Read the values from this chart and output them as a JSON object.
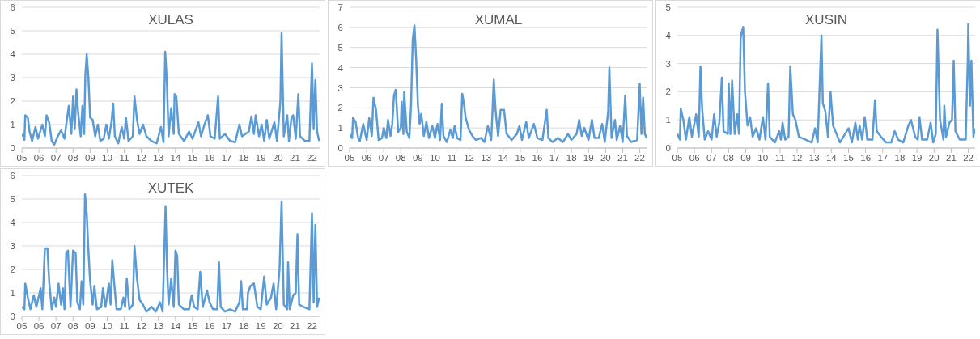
{
  "chart_data": [
    {
      "type": "line",
      "title": "XULAS",
      "grid": "y",
      "xlim": [
        2005,
        2022.45
      ],
      "ylim": [
        0,
        6
      ],
      "yticks": [
        0,
        1,
        2,
        3,
        4,
        5,
        6
      ],
      "xticks": [
        {
          "value": 2005,
          "label": "05"
        },
        {
          "value": 2006,
          "label": "06"
        },
        {
          "value": 2007,
          "label": "07"
        },
        {
          "value": 2008,
          "label": "08"
        },
        {
          "value": 2009,
          "label": "09"
        },
        {
          "value": 2010,
          "label": "10"
        },
        {
          "value": 2011,
          "label": "11"
        },
        {
          "value": 2012,
          "label": "12"
        },
        {
          "value": 2013,
          "label": "13"
        },
        {
          "value": 2014,
          "label": "14"
        },
        {
          "value": 2015,
          "label": "15"
        },
        {
          "value": 2016,
          "label": "16"
        },
        {
          "value": 2017,
          "label": "17"
        },
        {
          "value": 2018,
          "label": "18"
        },
        {
          "value": 2019,
          "label": "19"
        },
        {
          "value": 2020,
          "label": "20"
        },
        {
          "value": 2021,
          "label": "21"
        },
        {
          "value": 2022,
          "label": "22"
        }
      ],
      "series": [
        {
          "color": "#5b9bd5",
          "x": [
            2005.0,
            2005.1,
            2005.15,
            2005.2,
            2005.35,
            2005.45,
            2005.6,
            2005.8,
            2005.95,
            2006.2,
            2006.35,
            2006.45,
            2006.6,
            2006.75,
            2006.9,
            2007.1,
            2007.3,
            2007.5,
            2007.6,
            2007.75,
            2007.9,
            2008.0,
            2008.1,
            2008.2,
            2008.3,
            2008.45,
            2008.55,
            2008.65,
            2008.72,
            2008.8,
            2008.9,
            2009.0,
            2009.15,
            2009.3,
            2009.45,
            2009.6,
            2009.8,
            2009.95,
            2010.1,
            2010.25,
            2010.35,
            2010.45,
            2010.65,
            2010.85,
            2011.0,
            2011.1,
            2011.25,
            2011.5,
            2011.6,
            2011.75,
            2011.9,
            2012.1,
            2012.3,
            2012.6,
            2012.9,
            2013.15,
            2013.3,
            2013.4,
            2013.5,
            2013.6,
            2013.75,
            2013.9,
            2013.95,
            2014.05,
            2014.2,
            2014.5,
            2014.8,
            2015.0,
            2015.35,
            2015.5,
            2015.7,
            2015.9,
            2016.05,
            2016.3,
            2016.5,
            2016.6,
            2016.9,
            2017.2,
            2017.5,
            2017.75,
            2017.9,
            2018.3,
            2018.45,
            2018.6,
            2018.7,
            2018.9,
            2019.05,
            2019.2,
            2019.35,
            2019.5,
            2019.8,
            2019.95,
            2020.15,
            2020.22,
            2020.35,
            2020.55,
            2020.65,
            2020.8,
            2020.9,
            2021.05,
            2021.2,
            2021.3,
            2021.6,
            2021.85,
            2022.0,
            2022.1,
            2022.2,
            2022.3,
            2022.42
          ],
          "values": [
            0.5,
            0.6,
            0.35,
            1.4,
            1.3,
            0.7,
            0.3,
            0.9,
            0.4,
            1.0,
            0.5,
            1.4,
            1.1,
            0.3,
            0.15,
            0.5,
            0.75,
            0.4,
            1.0,
            1.8,
            0.6,
            2.2,
            0.8,
            2.5,
            1.5,
            0.5,
            1.8,
            0.6,
            3.1,
            4.0,
            3.0,
            1.3,
            1.2,
            0.5,
            1.0,
            0.3,
            0.4,
            1.0,
            0.4,
            1.1,
            1.9,
            0.5,
            0.2,
            0.9,
            0.4,
            1.3,
            0.3,
            0.5,
            2.2,
            1.2,
            0.6,
            1.0,
            0.5,
            0.3,
            0.2,
            0.9,
            0.25,
            4.1,
            2.8,
            0.5,
            1.7,
            0.6,
            2.3,
            2.2,
            0.6,
            0.3,
            0.7,
            0.4,
            1.1,
            0.5,
            1.0,
            1.4,
            0.5,
            0.4,
            2.2,
            0.4,
            0.6,
            0.3,
            0.25,
            1.0,
            0.5,
            0.7,
            1.35,
            0.6,
            1.4,
            0.5,
            1.0,
            0.3,
            1.2,
            0.4,
            1.1,
            0.3,
            2.0,
            4.9,
            0.5,
            1.4,
            0.3,
            1.3,
            1.4,
            0.4,
            2.3,
            0.5,
            0.3,
            0.3,
            3.6,
            0.8,
            2.9,
            0.7,
            0.3
          ]
        }
      ]
    },
    {
      "type": "line",
      "title": "XUMAL",
      "grid": "y",
      "xlim": [
        2005,
        2022.45
      ],
      "ylim": [
        0,
        7
      ],
      "yticks": [
        0,
        1,
        2,
        3,
        4,
        5,
        6,
        7
      ],
      "xticks": [
        {
          "value": 2005,
          "label": "05"
        },
        {
          "value": 2006,
          "label": "06"
        },
        {
          "value": 2007,
          "label": "07"
        },
        {
          "value": 2008,
          "label": "08"
        },
        {
          "value": 2009,
          "label": "09"
        },
        {
          "value": 2010,
          "label": "10"
        },
        {
          "value": 2011,
          "label": "11"
        },
        {
          "value": 2012,
          "label": "12"
        },
        {
          "value": 2013,
          "label": "13"
        },
        {
          "value": 2014,
          "label": "14"
        },
        {
          "value": 2015,
          "label": "15"
        },
        {
          "value": 2016,
          "label": "16"
        },
        {
          "value": 2017,
          "label": "17"
        },
        {
          "value": 2018,
          "label": "18"
        },
        {
          "value": 2019,
          "label": "19"
        },
        {
          "value": 2020,
          "label": "20"
        },
        {
          "value": 2021,
          "label": "21"
        },
        {
          "value": 2022,
          "label": "22"
        }
      ],
      "series": [
        {
          "color": "#5b9bd5",
          "x": [
            2005.0,
            2005.15,
            2005.2,
            2005.35,
            2005.5,
            2005.6,
            2005.8,
            2006.0,
            2006.15,
            2006.3,
            2006.4,
            2006.55,
            2006.7,
            2006.9,
            2007.0,
            2007.15,
            2007.25,
            2007.4,
            2007.5,
            2007.6,
            2007.7,
            2007.85,
            2008.0,
            2008.05,
            2008.15,
            2008.2,
            2008.35,
            2008.5,
            2008.6,
            2008.7,
            2008.8,
            2008.9,
            2009.0,
            2009.1,
            2009.2,
            2009.35,
            2009.5,
            2009.65,
            2009.85,
            2010.0,
            2010.15,
            2010.3,
            2010.4,
            2010.5,
            2010.7,
            2010.9,
            2011.05,
            2011.15,
            2011.3,
            2011.5,
            2011.6,
            2011.7,
            2011.8,
            2012.0,
            2012.2,
            2012.4,
            2012.7,
            2012.9,
            2013.1,
            2013.3,
            2013.45,
            2013.55,
            2013.7,
            2013.85,
            2014.05,
            2014.2,
            2014.5,
            2014.8,
            2014.95,
            2015.1,
            2015.35,
            2015.5,
            2015.8,
            2016.0,
            2016.3,
            2016.55,
            2016.65,
            2016.9,
            2017.2,
            2017.5,
            2017.8,
            2018.0,
            2018.3,
            2018.45,
            2018.6,
            2018.75,
            2019.0,
            2019.2,
            2019.35,
            2019.6,
            2019.8,
            2019.95,
            2020.15,
            2020.22,
            2020.35,
            2020.55,
            2020.65,
            2020.85,
            2021.0,
            2021.15,
            2021.25,
            2021.5,
            2021.85,
            2022.0,
            2022.1,
            2022.2,
            2022.3,
            2022.42
          ],
          "values": [
            0.7,
            0.5,
            1.5,
            1.3,
            0.5,
            0.35,
            1.2,
            0.4,
            1.5,
            0.6,
            2.5,
            1.9,
            0.4,
            0.5,
            1.0,
            0.5,
            1.4,
            0.6,
            1.2,
            2.6,
            2.9,
            0.8,
            1.0,
            2.3,
            0.7,
            2.8,
            0.8,
            0.5,
            2.1,
            5.4,
            6.1,
            4.4,
            2.2,
            1.2,
            1.7,
            0.6,
            1.3,
            0.5,
            1.1,
            0.5,
            1.2,
            0.4,
            2.2,
            0.6,
            0.3,
            0.9,
            0.5,
            1.1,
            0.5,
            0.4,
            2.7,
            2.2,
            1.5,
            0.9,
            0.6,
            0.4,
            0.5,
            0.3,
            1.1,
            0.4,
            3.4,
            1.9,
            0.6,
            1.9,
            1.9,
            0.7,
            0.4,
            0.7,
            1.1,
            0.4,
            1.3,
            0.5,
            1.2,
            0.5,
            0.4,
            1.9,
            0.5,
            0.3,
            0.5,
            0.3,
            0.7,
            0.4,
            0.7,
            1.4,
            0.6,
            1.0,
            0.4,
            1.4,
            0.5,
            0.5,
            1.2,
            0.3,
            1.8,
            4.0,
            0.5,
            1.4,
            0.4,
            1.1,
            0.3,
            2.6,
            0.6,
            0.3,
            0.4,
            3.2,
            0.7,
            2.5,
            0.7,
            0.5
          ]
        }
      ]
    },
    {
      "type": "line",
      "title": "XUSIN",
      "grid": "y",
      "xlim": [
        2005,
        2022.4
      ],
      "ylim": [
        0,
        5
      ],
      "yticks": [
        0,
        1,
        2,
        3,
        4,
        5
      ],
      "xticks": [
        {
          "value": 2005,
          "label": "05"
        },
        {
          "value": 2006,
          "label": "06"
        },
        {
          "value": 2007,
          "label": "07"
        },
        {
          "value": 2008,
          "label": "08"
        },
        {
          "value": 2009,
          "label": "09"
        },
        {
          "value": 2010,
          "label": "10"
        },
        {
          "value": 2011,
          "label": "11"
        },
        {
          "value": 2012,
          "label": "12"
        },
        {
          "value": 2013,
          "label": "13"
        },
        {
          "value": 2014,
          "label": "14"
        },
        {
          "value": 2015,
          "label": "15"
        },
        {
          "value": 2016,
          "label": "16"
        },
        {
          "value": 2017,
          "label": "17"
        },
        {
          "value": 2018,
          "label": "18"
        },
        {
          "value": 2019,
          "label": "19"
        },
        {
          "value": 2020,
          "label": "20"
        },
        {
          "value": 2021,
          "label": "21"
        },
        {
          "value": 2022,
          "label": "22"
        }
      ],
      "series": [
        {
          "color": "#5b9bd5",
          "x": [
            2005.0,
            2005.15,
            2005.2,
            2005.35,
            2005.5,
            2005.7,
            2005.85,
            2006.1,
            2006.25,
            2006.35,
            2006.45,
            2006.6,
            2006.8,
            2007.0,
            2007.15,
            2007.3,
            2007.45,
            2007.6,
            2007.7,
            2007.95,
            2008.0,
            2008.1,
            2008.2,
            2008.35,
            2008.5,
            2008.6,
            2008.7,
            2008.75,
            2008.85,
            2008.95,
            2009.1,
            2009.25,
            2009.4,
            2009.6,
            2009.8,
            2010.0,
            2010.15,
            2010.3,
            2010.4,
            2010.7,
            2010.95,
            2011.05,
            2011.15,
            2011.3,
            2011.5,
            2011.6,
            2011.75,
            2011.9,
            2012.1,
            2012.5,
            2012.85,
            2013.05,
            2013.2,
            2013.42,
            2013.5,
            2013.65,
            2013.8,
            2013.95,
            2014.1,
            2014.3,
            2014.5,
            2014.8,
            2015.0,
            2015.2,
            2015.4,
            2015.55,
            2015.65,
            2015.8,
            2015.95,
            2016.1,
            2016.4,
            2016.55,
            2016.65,
            2016.9,
            2017.2,
            2017.5,
            2017.7,
            2017.9,
            2018.2,
            2018.5,
            2018.65,
            2018.9,
            2019.05,
            2019.15,
            2019.3,
            2019.6,
            2019.8,
            2019.95,
            2020.1,
            2020.2,
            2020.35,
            2020.55,
            2020.6,
            2020.7,
            2020.9,
            2021.05,
            2021.15,
            2021.25,
            2021.5,
            2021.85,
            2021.97,
            2022.0,
            2022.1,
            2022.18,
            2022.3,
            2022.38
          ],
          "values": [
            0.5,
            0.3,
            1.4,
            1.0,
            0.3,
            1.1,
            0.4,
            1.2,
            0.4,
            2.9,
            1.4,
            0.3,
            0.6,
            0.3,
            1.2,
            0.4,
            0.9,
            2.5,
            0.6,
            0.5,
            2.3,
            0.5,
            2.4,
            0.5,
            1.2,
            0.5,
            3.9,
            4.1,
            4.3,
            2.0,
            0.8,
            1.1,
            0.4,
            0.7,
            0.3,
            1.1,
            0.3,
            2.3,
            0.4,
            0.2,
            0.6,
            0.3,
            0.9,
            0.3,
            0.4,
            2.9,
            1.2,
            1.0,
            0.4,
            0.3,
            0.2,
            0.7,
            0.2,
            4.0,
            1.6,
            1.3,
            0.4,
            2.0,
            0.8,
            0.5,
            0.2,
            0.5,
            0.7,
            0.2,
            0.9,
            0.3,
            0.8,
            0.3,
            1.1,
            0.3,
            0.3,
            1.7,
            0.6,
            0.4,
            0.2,
            0.2,
            0.6,
            0.3,
            0.2,
            0.8,
            1.0,
            0.4,
            0.3,
            1.1,
            0.3,
            0.3,
            0.9,
            0.2,
            0.5,
            4.2,
            1.0,
            0.3,
            1.5,
            0.4,
            0.9,
            1.0,
            3.1,
            0.6,
            0.3,
            0.3,
            3.1,
            4.4,
            1.5,
            3.1,
            0.4,
            0.7
          ]
        }
      ]
    },
    {
      "type": "line",
      "title": "XUTEK",
      "grid": "y",
      "xlim": [
        2005,
        2022.45
      ],
      "ylim": [
        0,
        6
      ],
      "yticks": [
        0,
        1,
        2,
        3,
        4,
        5,
        6
      ],
      "xticks": [
        {
          "value": 2005,
          "label": "05"
        },
        {
          "value": 2006,
          "label": "06"
        },
        {
          "value": 2007,
          "label": "07"
        },
        {
          "value": 2008,
          "label": "08"
        },
        {
          "value": 2009,
          "label": "09"
        },
        {
          "value": 2010,
          "label": "10"
        },
        {
          "value": 2011,
          "label": "11"
        },
        {
          "value": 2012,
          "label": "12"
        },
        {
          "value": 2013,
          "label": "13"
        },
        {
          "value": 2014,
          "label": "14"
        },
        {
          "value": 2015,
          "label": "15"
        },
        {
          "value": 2016,
          "label": "16"
        },
        {
          "value": 2017,
          "label": "17"
        },
        {
          "value": 2018,
          "label": "18"
        },
        {
          "value": 2019,
          "label": "19"
        },
        {
          "value": 2020,
          "label": "20"
        },
        {
          "value": 2021,
          "label": "21"
        },
        {
          "value": 2022,
          "label": "22"
        }
      ],
      "series": [
        {
          "color": "#5b9bd5",
          "x": [
            2005.0,
            2005.15,
            2005.2,
            2005.35,
            2005.5,
            2005.7,
            2005.85,
            2006.1,
            2006.2,
            2006.35,
            2006.5,
            2006.6,
            2006.75,
            2006.9,
            2007.0,
            2007.15,
            2007.3,
            2007.4,
            2007.5,
            2007.6,
            2007.7,
            2007.85,
            2008.0,
            2008.15,
            2008.25,
            2008.4,
            2008.5,
            2008.6,
            2008.7,
            2008.8,
            2008.9,
            2009.0,
            2009.15,
            2009.25,
            2009.4,
            2009.65,
            2009.75,
            2009.9,
            2010.1,
            2010.2,
            2010.3,
            2010.4,
            2010.55,
            2010.8,
            2010.95,
            2011.05,
            2011.15,
            2011.3,
            2011.5,
            2011.6,
            2011.75,
            2011.9,
            2012.1,
            2012.3,
            2012.6,
            2012.85,
            2013.1,
            2013.25,
            2013.42,
            2013.5,
            2013.6,
            2013.75,
            2013.9,
            2014.0,
            2014.1,
            2014.2,
            2014.5,
            2014.8,
            2014.95,
            2015.1,
            2015.3,
            2015.45,
            2015.6,
            2015.85,
            2016.0,
            2016.2,
            2016.45,
            2016.55,
            2016.65,
            2016.9,
            2017.2,
            2017.5,
            2017.75,
            2017.85,
            2017.95,
            2018.2,
            2018.25,
            2018.4,
            2018.6,
            2018.8,
            2019.0,
            2019.2,
            2019.35,
            2019.6,
            2019.75,
            2019.9,
            2020.1,
            2020.22,
            2020.35,
            2020.55,
            2020.6,
            2020.7,
            2020.9,
            2021.05,
            2021.15,
            2021.25,
            2021.5,
            2021.85,
            2022.0,
            2022.1,
            2022.2,
            2022.3,
            2022.42
          ],
          "values": [
            0.4,
            0.3,
            1.4,
            0.8,
            0.3,
            0.9,
            0.4,
            1.2,
            0.3,
            2.9,
            2.9,
            1.5,
            0.3,
            0.8,
            0.4,
            1.4,
            0.5,
            1.2,
            0.3,
            2.7,
            2.8,
            0.4,
            2.8,
            2.7,
            0.6,
            0.3,
            1.5,
            0.5,
            5.2,
            4.4,
            2.8,
            1.5,
            0.5,
            1.3,
            0.3,
            0.4,
            1.2,
            0.4,
            1.4,
            0.5,
            2.4,
            1.5,
            0.3,
            0.3,
            0.8,
            0.4,
            1.6,
            0.3,
            0.5,
            3.0,
            1.6,
            0.7,
            0.5,
            0.2,
            0.4,
            0.2,
            0.6,
            0.2,
            4.7,
            2.2,
            0.5,
            1.6,
            0.4,
            2.8,
            2.6,
            0.5,
            0.3,
            0.3,
            0.9,
            0.4,
            0.3,
            1.9,
            0.4,
            1.1,
            0.6,
            0.3,
            0.3,
            2.3,
            0.4,
            0.2,
            0.3,
            0.2,
            0.6,
            1.5,
            0.3,
            0.3,
            1.0,
            1.3,
            1.4,
            0.4,
            0.3,
            1.7,
            0.5,
            0.8,
            1.4,
            0.3,
            2.0,
            4.9,
            0.5,
            0.3,
            2.3,
            0.3,
            0.9,
            1.0,
            3.5,
            0.5,
            0.4,
            0.3,
            4.4,
            0.6,
            3.9,
            0.4,
            0.8
          ]
        }
      ]
    }
  ]
}
